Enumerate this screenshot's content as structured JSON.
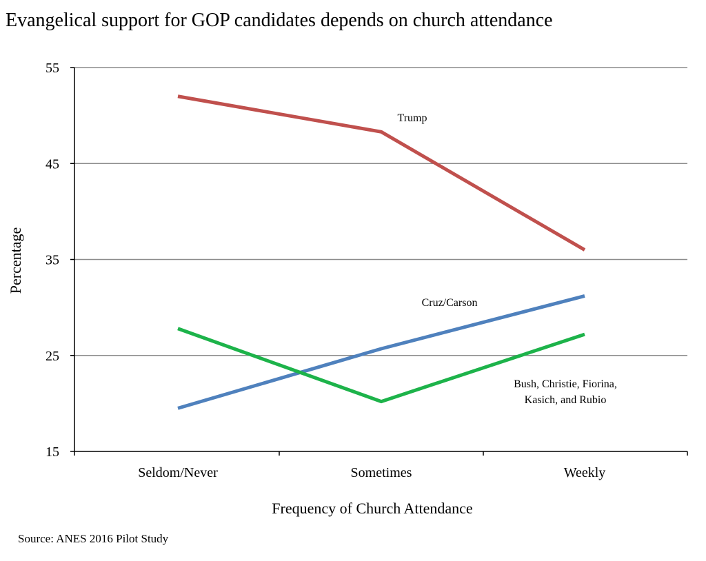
{
  "page": {
    "title": "Evangelical support for GOP candidates depends on church attendance",
    "source": "Source: ANES 2016 Pilot Study"
  },
  "chart_data": {
    "type": "line",
    "title": "Evangelical support for GOP candidates depends on church attendance",
    "xlabel": "Frequency of Church Attendance",
    "ylabel": "Percentage",
    "categories": [
      "Seldom/Never",
      "Sometimes",
      "Weekly"
    ],
    "ylim": [
      15,
      55
    ],
    "yticks": [
      15,
      25,
      35,
      45,
      55
    ],
    "grid": true,
    "series": [
      {
        "name": "Trump",
        "values": [
          52,
          48.3,
          36
        ],
        "color": "#c0504d",
        "label_lines": [
          "Trump"
        ]
      },
      {
        "name": "Cruz/Carson",
        "values": [
          19.5,
          25.7,
          31.2
        ],
        "color": "#4f81bd",
        "label_lines": [
          "Cruz/Carson"
        ]
      },
      {
        "name": "Bush, Christie, Fiorina, Kasich, and Rubio",
        "values": [
          27.8,
          20.2,
          27.2
        ],
        "color": "#1db34a",
        "label_lines": [
          "Bush, Christie, Fiorina,",
          "Kasich, and Rubio"
        ]
      }
    ]
  }
}
